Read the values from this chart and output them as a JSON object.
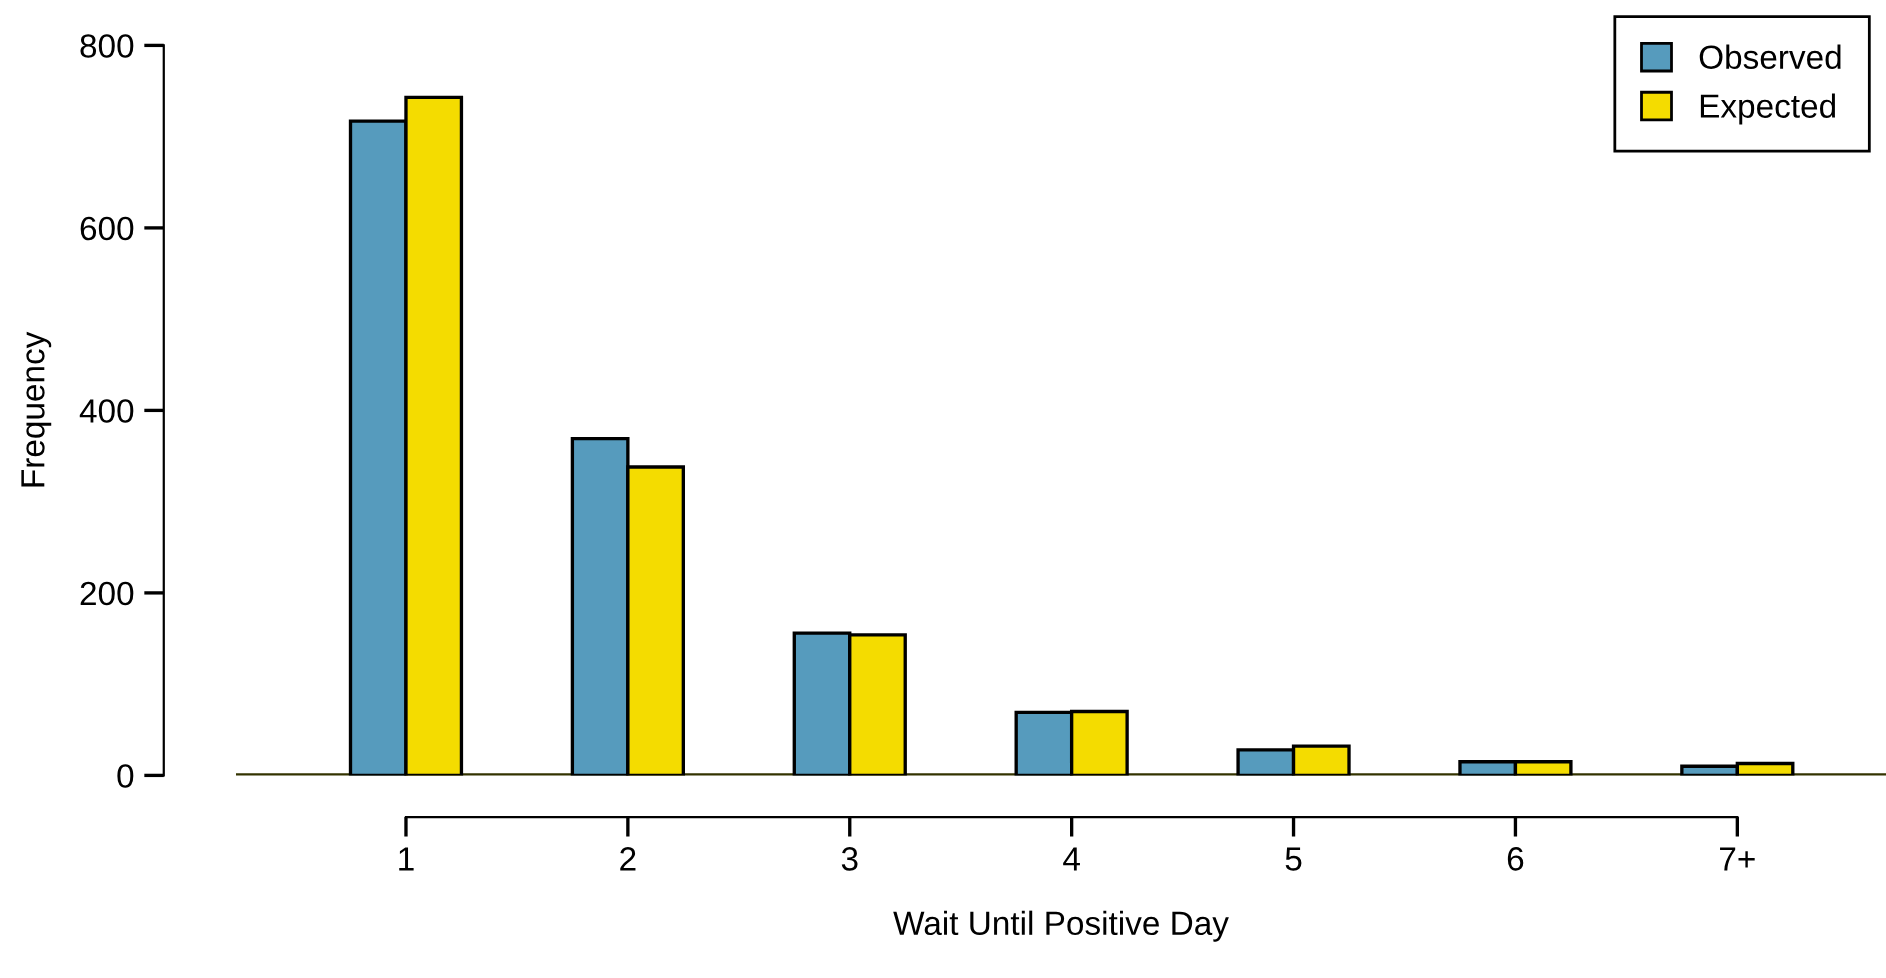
{
  "chart_data": {
    "type": "bar",
    "xlabel": "Wait Until Positive Day",
    "ylabel": "Frequency",
    "categories": [
      "1",
      "2",
      "3",
      "4",
      "5",
      "6",
      "7+"
    ],
    "series": [
      {
        "name": "Observed",
        "color": "#569bbd",
        "values": [
          717,
          369,
          156,
          69,
          28,
          15,
          10
        ]
      },
      {
        "name": "Expected",
        "color": "#f4dc00",
        "values": [
          743,
          338,
          154,
          70,
          32,
          15,
          13
        ]
      }
    ],
    "ylim": [
      0,
      800
    ],
    "yticks": [
      0,
      200,
      400,
      600,
      800
    ],
    "ref_lines": [
      {
        "axis": "y",
        "value": 0,
        "color": "#333300"
      }
    ],
    "grid": false,
    "legend": "top right"
  }
}
